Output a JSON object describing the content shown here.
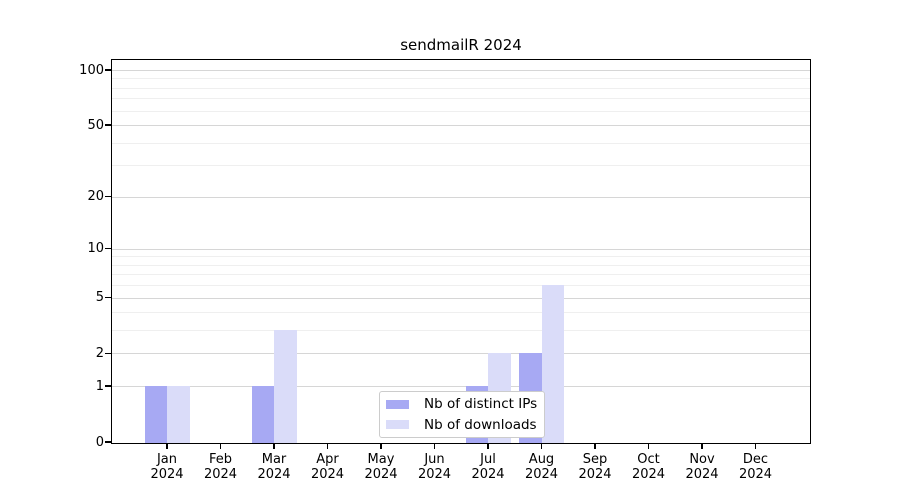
{
  "chart_data": {
    "type": "bar",
    "title": "sendmailR 2024",
    "categories": [
      "Jan",
      "Feb",
      "Mar",
      "Apr",
      "May",
      "Jun",
      "Jul",
      "Aug",
      "Sep",
      "Oct",
      "Nov",
      "Dec"
    ],
    "category_year": "2024",
    "series": [
      {
        "name": "Nb of distinct IPs",
        "color": "#a7a9f3",
        "values": [
          1,
          0,
          1,
          0,
          0,
          0,
          1,
          2,
          0,
          0,
          0,
          0
        ]
      },
      {
        "name": "Nb of downloads",
        "color": "#dadcf9",
        "values": [
          1,
          0,
          3,
          0,
          0,
          0,
          2,
          6,
          0,
          0,
          0,
          0
        ]
      }
    ],
    "xlabel": "",
    "ylabel": "",
    "y_axis": {
      "scale": "log1p",
      "range": [
        0,
        100
      ],
      "tick_values": [
        0,
        1,
        2,
        5,
        10,
        20,
        50,
        100
      ],
      "tick_labels": [
        "0",
        "1",
        "2",
        "5",
        "10",
        "20",
        "50",
        "100"
      ],
      "minor_gridline_values": [
        3,
        4,
        6,
        7,
        8,
        9,
        30,
        40,
        60,
        70,
        80,
        90
      ]
    },
    "legend_position": "lower-center",
    "grid": "horizontal"
  },
  "colors": {
    "background": "#ffffff",
    "axis": "#000000",
    "major_grid": "#d6d6d6",
    "minor_grid": "#efefef",
    "legend_border": "#cccccc"
  }
}
